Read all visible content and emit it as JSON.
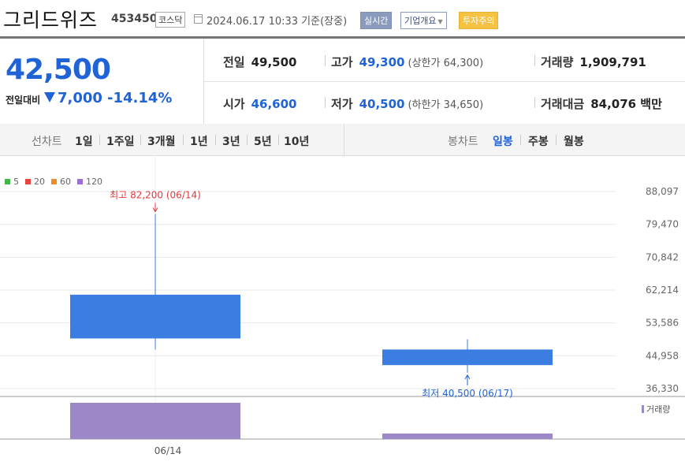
{
  "header": {
    "company": "그리드위즈",
    "code": "453450",
    "market": "코스닥",
    "datetime": "2024.06.17 10:33 기준(장중)",
    "realtime_label": "실시간",
    "overview_label": "기업개요",
    "warning_label": "투자주의"
  },
  "quote": {
    "price": "42,500",
    "change_label": "전일대비",
    "change_value": "7,000",
    "change_pct": "-14.14%",
    "prev_close_label": "전일",
    "prev_close": "49,500",
    "high_label": "고가",
    "high": "49,300",
    "upper_limit": "(상한가 64,300)",
    "volume_label": "거래량",
    "volume": "1,909,791",
    "open_label": "시가",
    "open": "46,600",
    "low_label": "저가",
    "low": "40,500",
    "lower_limit": "(하한가 34,650)",
    "amount_label": "거래대금",
    "amount": "84,076 백만"
  },
  "tabs": {
    "line_label": "선차트",
    "line": [
      "1일",
      "1주일",
      "3개월",
      "1년",
      "3년",
      "5년",
      "10년"
    ],
    "candle_label": "봉차트",
    "candle": [
      "일봉",
      "주봉",
      "월봉"
    ]
  },
  "colors": {
    "up": "#e03a3e",
    "down": "#1f63d6",
    "candle_down": "#3b7de0",
    "volume": "#9c87c7",
    "accent": "#1f63d6"
  },
  "chart_data": {
    "type": "candlestick",
    "legend": [
      {
        "name": "5",
        "color": "#44b649"
      },
      {
        "name": "20",
        "color": "#e8453c"
      },
      {
        "name": "60",
        "color": "#f08a24"
      },
      {
        "name": "120",
        "color": "#9b6fcf"
      }
    ],
    "y_ticks": [
      "88,097",
      "79,470",
      "70,842",
      "62,214",
      "53,586",
      "44,958",
      "36,330"
    ],
    "y_tick_values": [
      88097,
      79470,
      70842,
      62214,
      53586,
      44958,
      36330
    ],
    "ylim": [
      36330,
      88097
    ],
    "x_labels": [
      "06/14"
    ],
    "candles": [
      {
        "date": "06/14",
        "open": 61000,
        "high": 82200,
        "low": 46600,
        "close": 49500,
        "volume": 12500000
      },
      {
        "date": "06/17",
        "open": 46600,
        "high": 49300,
        "low": 40500,
        "close": 42500,
        "volume": 1909791
      }
    ],
    "annotations": {
      "high_text": "최고 82,200 (06/14)",
      "low_text": "최저 40,500 (06/17)"
    },
    "volume_label": "거래량"
  }
}
